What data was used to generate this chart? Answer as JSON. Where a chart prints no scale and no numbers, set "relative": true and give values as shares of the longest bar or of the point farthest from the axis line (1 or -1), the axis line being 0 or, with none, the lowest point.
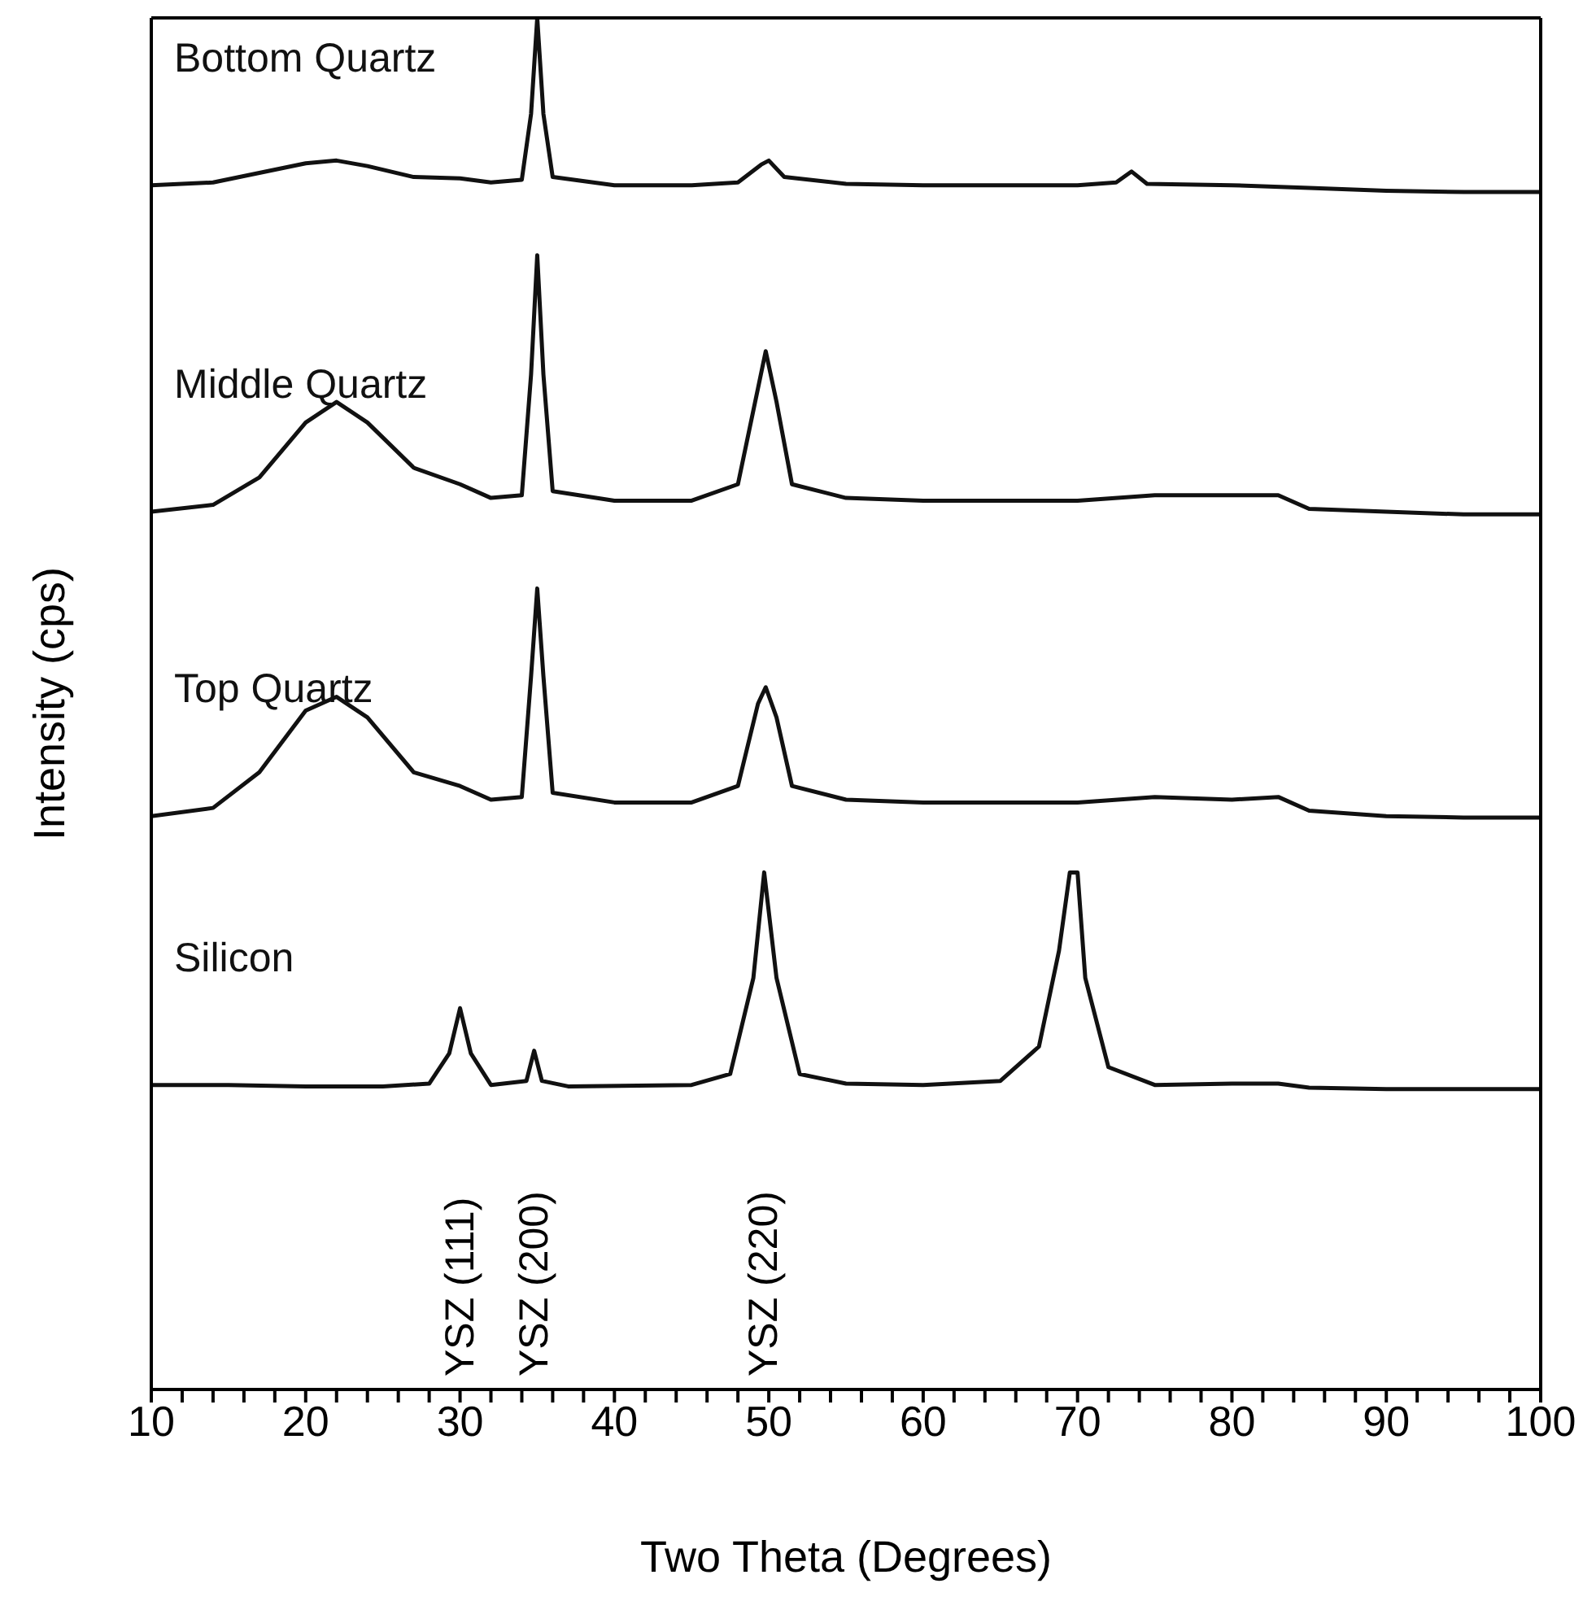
{
  "chart_data": {
    "type": "line",
    "relative": true,
    "xlabel": "Two Theta (Degrees)",
    "ylabel": "Intensity (cps)",
    "xlim": [
      10,
      100
    ],
    "xticks": [
      10,
      {
        "value": 12,
        "label": null
      },
      {
        "value": 14,
        "label": null
      },
      {
        "value": 16,
        "label": null
      },
      {
        "value": 18,
        "label": null
      },
      20,
      {
        "value": 22,
        "label": null
      },
      {
        "value": 24,
        "label": null
      },
      {
        "value": 26,
        "label": null
      },
      {
        "value": 28,
        "label": null
      },
      30,
      {
        "value": 32,
        "label": null
      },
      {
        "value": 34,
        "label": null
      },
      {
        "value": 36,
        "label": null
      },
      {
        "value": 38,
        "label": null
      },
      40,
      {
        "value": 42,
        "label": null
      },
      {
        "value": 44,
        "label": null
      },
      {
        "value": 46,
        "label": null
      },
      {
        "value": 48,
        "label": null
      },
      50,
      {
        "value": 52,
        "label": null
      },
      {
        "value": 54,
        "label": null
      },
      {
        "value": 56,
        "label": null
      },
      {
        "value": 58,
        "label": null
      },
      60,
      {
        "value": 62,
        "label": null
      },
      {
        "value": 64,
        "label": null
      },
      {
        "value": 66,
        "label": null
      },
      {
        "value": 68,
        "label": null
      },
      70,
      {
        "value": 72,
        "label": null
      },
      {
        "value": 74,
        "label": null
      },
      {
        "value": 76,
        "label": null
      },
      {
        "value": 78,
        "label": null
      },
      80,
      {
        "value": 82,
        "label": null
      },
      {
        "value": 84,
        "label": null
      },
      {
        "value": 86,
        "label": null
      },
      {
        "value": 88,
        "label": null
      },
      90,
      {
        "value": 92,
        "label": null
      },
      {
        "value": 94,
        "label": null
      },
      {
        "value": 96,
        "label": null
      },
      {
        "value": 98,
        "label": null
      },
      100
    ],
    "tick_labels": "x",
    "series": [
      {
        "name": "Bottom Quartz",
        "color": "#111111",
        "x": [
          10,
          14,
          17,
          20,
          22,
          24,
          27,
          30,
          32,
          34,
          34.6,
          35,
          35.4,
          36,
          40,
          45,
          48,
          49.5,
          50,
          51,
          55,
          60,
          65,
          70,
          72.5,
          73.5,
          74.5,
          80,
          85,
          90,
          95,
          100
        ],
        "values": [
          0.878,
          0.88,
          0.887,
          0.894,
          0.896,
          0.892,
          0.884,
          0.883,
          0.88,
          0.882,
          0.93,
          1.0,
          0.93,
          0.884,
          0.878,
          0.878,
          0.88,
          0.893,
          0.896,
          0.884,
          0.879,
          0.878,
          0.878,
          0.878,
          0.88,
          0.888,
          0.879,
          0.878,
          0.876,
          0.874,
          0.873,
          0.873
        ]
      },
      {
        "name": "Middle Quartz",
        "color": "#111111",
        "x": [
          10,
          14,
          17,
          20,
          22,
          24,
          27,
          30,
          32,
          34,
          34.6,
          35,
          35.4,
          36,
          40,
          45,
          48,
          49.3,
          49.8,
          50.5,
          51.5,
          55,
          60,
          65,
          70,
          75,
          80,
          83,
          85,
          90,
          95,
          100
        ],
        "values": [
          0.64,
          0.645,
          0.665,
          0.705,
          0.72,
          0.705,
          0.672,
          0.66,
          0.65,
          0.652,
          0.74,
          0.827,
          0.74,
          0.655,
          0.648,
          0.648,
          0.66,
          0.73,
          0.757,
          0.72,
          0.66,
          0.65,
          0.648,
          0.648,
          0.648,
          0.652,
          0.652,
          0.652,
          0.642,
          0.64,
          0.638,
          0.638
        ]
      },
      {
        "name": "Top Quartz",
        "color": "#111111",
        "x": [
          10,
          14,
          17,
          20,
          22,
          24,
          27,
          30,
          32,
          34,
          34.6,
          35,
          35.4,
          36,
          40,
          45,
          48,
          49.3,
          49.8,
          50.5,
          51.5,
          55,
          60,
          65,
          70,
          75,
          80,
          83,
          85,
          90,
          95,
          100
        ],
        "values": [
          0.418,
          0.424,
          0.45,
          0.495,
          0.505,
          0.49,
          0.45,
          0.44,
          0.43,
          0.432,
          0.52,
          0.584,
          0.52,
          0.435,
          0.428,
          0.428,
          0.44,
          0.5,
          0.512,
          0.49,
          0.44,
          0.43,
          0.428,
          0.428,
          0.428,
          0.432,
          0.43,
          0.432,
          0.422,
          0.418,
          0.417,
          0.417
        ]
      },
      {
        "name": "Silicon",
        "color": "#111111",
        "x": [
          10,
          15,
          20,
          25,
          28,
          29.3,
          30,
          30.7,
          32,
          34.3,
          34.8,
          35.3,
          37,
          45,
          47.5,
          49,
          49.7,
          50.5,
          52,
          55,
          60,
          65,
          67.5,
          68.8,
          69.5,
          70,
          70.5,
          72,
          75,
          80,
          83,
          85,
          90,
          100
        ],
        "values": [
          0.222,
          0.222,
          0.221,
          0.221,
          0.223,
          0.245,
          0.278,
          0.245,
          0.222,
          0.225,
          0.247,
          0.225,
          0.221,
          0.222,
          0.23,
          0.3,
          0.377,
          0.3,
          0.23,
          0.223,
          0.222,
          0.225,
          0.25,
          0.32,
          0.377,
          0.377,
          0.3,
          0.235,
          0.222,
          0.223,
          0.223,
          0.22,
          0.219,
          0.219
        ]
      }
    ],
    "annotations": [
      "YSZ (111)",
      "YSZ (200)",
      "YSZ (220)"
    ]
  }
}
